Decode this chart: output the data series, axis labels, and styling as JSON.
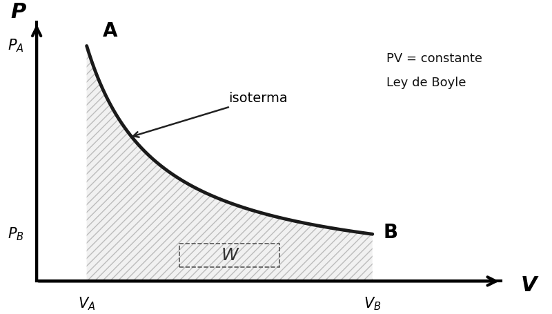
{
  "background_color": "#ffffff",
  "curve_color": "#1a1a1a",
  "curve_linewidth": 3.5,
  "fill_hatch": "///",
  "fill_alpha": 0.6,
  "fill_facecolor": "#e8e8e8",
  "fill_edgecolor": "#999999",
  "axis_color": "#000000",
  "axis_linewidth": 3.0,
  "VA": 1.0,
  "VB": 5.0,
  "PV_const": 9.0,
  "n_points": 400,
  "label_P": "$\\boldsymbol{P}$",
  "label_V": "$\\boldsymbol{V}$",
  "label_A": "$\\mathbf{A}$",
  "label_B": "$\\mathbf{B}$",
  "label_PA": "$\\boldsymbol{P_A}$",
  "label_PB": "$\\boldsymbol{P_B}$",
  "label_VA": "$\\boldsymbol{V_A}$",
  "label_VB": "$\\boldsymbol{V_B}$",
  "label_W": "W",
  "label_isoterma": "isoterma",
  "label_pv_const": "PV = constante",
  "label_ley": "Ley de Boyle",
  "xlim": [
    -0.2,
    7.5
  ],
  "ylim": [
    -0.8,
    10.5
  ],
  "ax_origin_x": 0.3,
  "ax_origin_y": 0.0,
  "figsize": [
    8.0,
    4.55
  ],
  "dpi": 100
}
